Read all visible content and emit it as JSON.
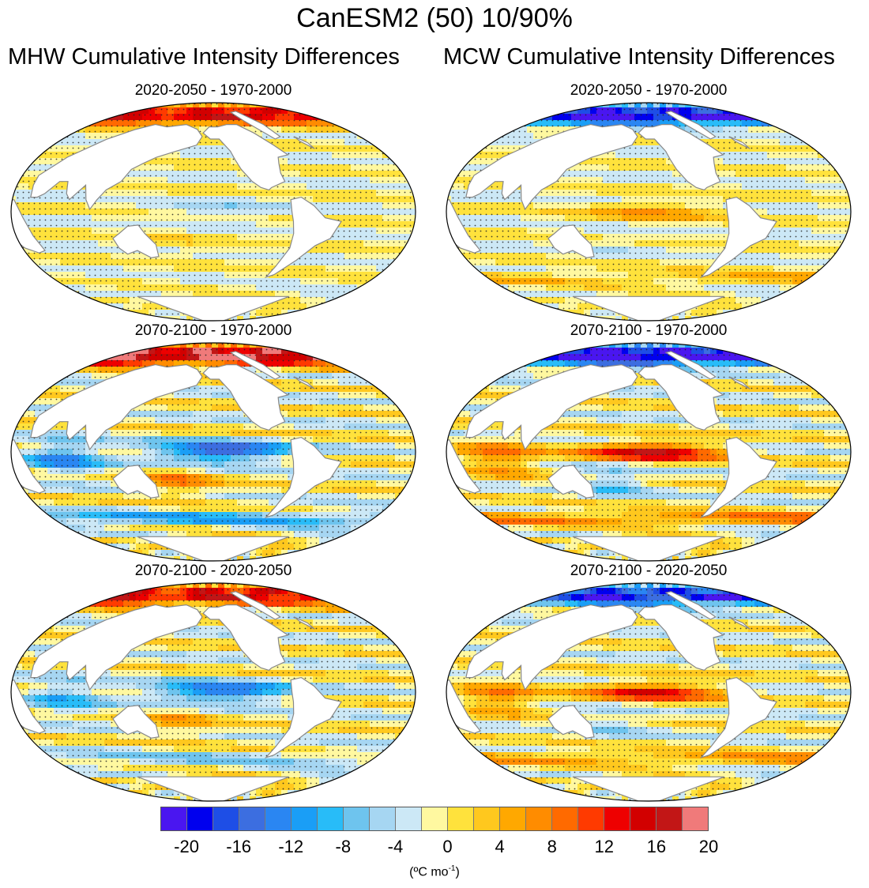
{
  "title": "CanESM2 (50) 10/90%",
  "columns": [
    {
      "heading": "MHW Cumulative Intensity Differences"
    },
    {
      "heading": "MCW Cumulative Intensity Differences"
    }
  ],
  "panels": [
    {
      "column": "MHW",
      "period": "2020-2050 - 1970-2000",
      "pattern": "mhw1"
    },
    {
      "column": "MCW",
      "period": "2020-2050 - 1970-2000",
      "pattern": "mcw1"
    },
    {
      "column": "MHW",
      "period": "2070-2100 - 1970-2000",
      "pattern": "mhw2"
    },
    {
      "column": "MCW",
      "period": "2070-2100 - 1970-2000",
      "pattern": "mcw2"
    },
    {
      "column": "MHW",
      "period": "2070-2100 - 2020-2050",
      "pattern": "mhw3"
    },
    {
      "column": "MCW",
      "period": "2070-2100 - 2020-2050",
      "pattern": "mcw3"
    }
  ],
  "colorbar": {
    "colors": [
      "#4a16f0",
      "#0000ee",
      "#1e4ee6",
      "#3c6ee0",
      "#2a86f2",
      "#1a9ef6",
      "#28bcf8",
      "#6ec4ee",
      "#a6d6f2",
      "#cce8f6",
      "#fff8a0",
      "#ffe23c",
      "#ffc81e",
      "#ffa800",
      "#ff8c00",
      "#ff6a00",
      "#ff3a00",
      "#ee0000",
      "#d20000",
      "#c21616",
      "#f07a7a"
    ],
    "tick_labels": [
      "-20",
      "-16",
      "-12",
      "-8",
      "-4",
      "0",
      "4",
      "8",
      "12",
      "16",
      "20"
    ],
    "units_base": "(ºC mo",
    "units_exp": "-1",
    "units_close": ")"
  }
}
